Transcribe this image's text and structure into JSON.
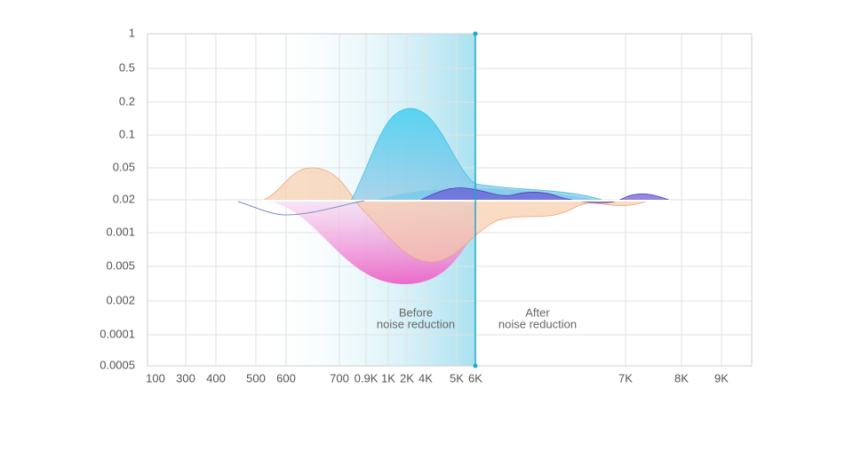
{
  "axes": {
    "y_labels": [
      "1",
      "0.5",
      "0.2",
      "0.1",
      "0.05",
      "0.02",
      "0.001",
      "0.005",
      "0.002",
      "0.0001",
      "0.0005"
    ],
    "x_labels": [
      "100",
      "300",
      "400",
      "500",
      "600",
      "700",
      "0.9K",
      "1K",
      "2K",
      "4K",
      "5K",
      "6K",
      "7K",
      "8K",
      "9K"
    ]
  },
  "annotations": [
    {
      "lines": [
        "Before",
        "noise reduction"
      ]
    },
    {
      "lines": [
        "After",
        "noise reduction"
      ]
    }
  ]
}
